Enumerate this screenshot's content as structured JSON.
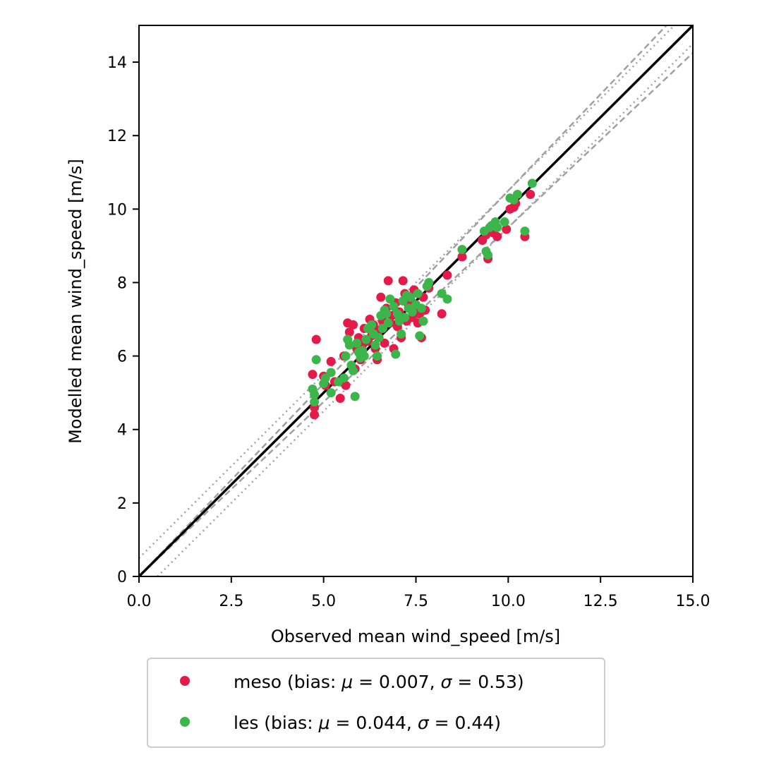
{
  "chart_data": {
    "type": "scatter",
    "xlabel": "Observed mean wind_speed [m/s]",
    "ylabel": "Modelled mean wind_speed [m/s]",
    "xlim": [
      0,
      15
    ],
    "ylim": [
      0,
      15
    ],
    "x_ticks": [
      "0.0",
      "2.5",
      "5.0",
      "7.5",
      "10.0",
      "12.5",
      "15.0"
    ],
    "y_ticks": [
      "0",
      "2",
      "4",
      "6",
      "8",
      "10",
      "12",
      "14"
    ],
    "grid": false,
    "legend_placement": "below",
    "reference_lines": {
      "identity": "solid black 1:1 line",
      "dashed": "±5% of value (grey dashed)",
      "dotted": "±0.5 m/s offset (grey dotted)"
    },
    "series": [
      {
        "name": "meso (bias: μ = 0.007, σ = 0.53)",
        "color": "#e31a4a",
        "points": [
          [
            4.7,
            5.5
          ],
          [
            4.75,
            4.4
          ],
          [
            4.75,
            4.6
          ],
          [
            4.8,
            6.45
          ],
          [
            5.0,
            5.45
          ],
          [
            5.05,
            5.2
          ],
          [
            5.2,
            5.85
          ],
          [
            5.3,
            5.3
          ],
          [
            5.45,
            4.85
          ],
          [
            5.55,
            6.0
          ],
          [
            5.6,
            5.2
          ],
          [
            5.65,
            6.9
          ],
          [
            5.7,
            6.65
          ],
          [
            5.8,
            6.85
          ],
          [
            5.85,
            5.65
          ],
          [
            5.9,
            6.2
          ],
          [
            5.95,
            6.5
          ],
          [
            6.0,
            5.9
          ],
          [
            6.05,
            6.3
          ],
          [
            6.1,
            6.75
          ],
          [
            6.2,
            6.4
          ],
          [
            6.25,
            7.0
          ],
          [
            6.3,
            6.55
          ],
          [
            6.35,
            6.85
          ],
          [
            6.4,
            6.2
          ],
          [
            6.45,
            5.9
          ],
          [
            6.5,
            6.7
          ],
          [
            6.55,
            7.6
          ],
          [
            6.6,
            6.95
          ],
          [
            6.65,
            6.35
          ],
          [
            6.7,
            7.3
          ],
          [
            6.75,
            8.05
          ],
          [
            6.8,
            6.9
          ],
          [
            6.85,
            7.1
          ],
          [
            6.9,
            6.2
          ],
          [
            6.95,
            7.45
          ],
          [
            7.0,
            6.8
          ],
          [
            7.05,
            7.2
          ],
          [
            7.1,
            6.5
          ],
          [
            7.15,
            8.05
          ],
          [
            7.2,
            7.7
          ],
          [
            7.25,
            6.95
          ],
          [
            7.3,
            7.4
          ],
          [
            7.35,
            7.55
          ],
          [
            7.4,
            7.05
          ],
          [
            7.45,
            7.8
          ],
          [
            7.5,
            7.3
          ],
          [
            7.55,
            6.9
          ],
          [
            7.6,
            7.15
          ],
          [
            7.65,
            6.5
          ],
          [
            7.7,
            7.6
          ],
          [
            7.75,
            7.25
          ],
          [
            7.85,
            7.85
          ],
          [
            8.2,
            7.15
          ],
          [
            8.35,
            8.2
          ],
          [
            8.75,
            8.7
          ],
          [
            9.3,
            9.15
          ],
          [
            9.4,
            9.3
          ],
          [
            9.45,
            8.65
          ],
          [
            9.5,
            9.45
          ],
          [
            9.6,
            9.35
          ],
          [
            9.7,
            9.25
          ],
          [
            9.95,
            9.45
          ],
          [
            10.05,
            10.0
          ],
          [
            10.15,
            10.05
          ],
          [
            10.2,
            10.15
          ],
          [
            10.45,
            9.25
          ],
          [
            10.6,
            10.4
          ]
        ]
      },
      {
        "name": "les (bias: μ = 0.044, σ = 0.44)",
        "color": "#3cb54a",
        "points": [
          [
            4.7,
            5.1
          ],
          [
            4.75,
            4.75
          ],
          [
            4.75,
            4.95
          ],
          [
            4.8,
            5.9
          ],
          [
            5.0,
            5.25
          ],
          [
            5.05,
            5.4
          ],
          [
            5.2,
            5.55
          ],
          [
            5.2,
            5.0
          ],
          [
            5.4,
            5.3
          ],
          [
            5.55,
            5.4
          ],
          [
            5.6,
            6.0
          ],
          [
            5.65,
            6.45
          ],
          [
            5.7,
            6.3
          ],
          [
            5.75,
            5.75
          ],
          [
            5.8,
            5.6
          ],
          [
            5.85,
            4.9
          ],
          [
            5.9,
            6.35
          ],
          [
            5.95,
            6.1
          ],
          [
            6.0,
            5.95
          ],
          [
            6.05,
            6.15
          ],
          [
            6.1,
            6.0
          ],
          [
            6.15,
            6.45
          ],
          [
            6.2,
            6.75
          ],
          [
            6.3,
            6.85
          ],
          [
            6.35,
            6.6
          ],
          [
            6.4,
            6.3
          ],
          [
            6.45,
            6.0
          ],
          [
            6.5,
            6.5
          ],
          [
            6.55,
            7.1
          ],
          [
            6.6,
            6.75
          ],
          [
            6.65,
            7.25
          ],
          [
            6.7,
            7.15
          ],
          [
            6.75,
            6.9
          ],
          [
            6.8,
            7.55
          ],
          [
            6.9,
            7.35
          ],
          [
            6.95,
            6.05
          ],
          [
            7.0,
            7.15
          ],
          [
            7.05,
            6.95
          ],
          [
            7.1,
            6.6
          ],
          [
            7.15,
            7.5
          ],
          [
            7.2,
            7.05
          ],
          [
            7.25,
            7.65
          ],
          [
            7.3,
            7.3
          ],
          [
            7.35,
            7.6
          ],
          [
            7.4,
            7.2
          ],
          [
            7.5,
            7.4
          ],
          [
            7.55,
            7.7
          ],
          [
            7.6,
            6.55
          ],
          [
            7.65,
            7.3
          ],
          [
            7.7,
            6.95
          ],
          [
            7.8,
            7.9
          ],
          [
            7.85,
            8.0
          ],
          [
            8.2,
            7.7
          ],
          [
            8.35,
            7.55
          ],
          [
            8.75,
            8.9
          ],
          [
            9.35,
            9.4
          ],
          [
            9.4,
            8.85
          ],
          [
            9.45,
            8.75
          ],
          [
            9.5,
            9.5
          ],
          [
            9.55,
            9.55
          ],
          [
            9.65,
            9.65
          ],
          [
            9.7,
            9.5
          ],
          [
            9.9,
            9.65
          ],
          [
            10.05,
            10.3
          ],
          [
            10.15,
            10.25
          ],
          [
            10.25,
            10.4
          ],
          [
            10.45,
            9.4
          ],
          [
            10.65,
            10.7
          ]
        ]
      }
    ]
  },
  "legend": {
    "meso_label": "meso (bias: ",
    "les_label": "les (bias: ",
    "meso_mu": "0.007",
    "meso_sigma": "0.53",
    "les_mu": "0.044",
    "les_sigma": "0.44"
  }
}
